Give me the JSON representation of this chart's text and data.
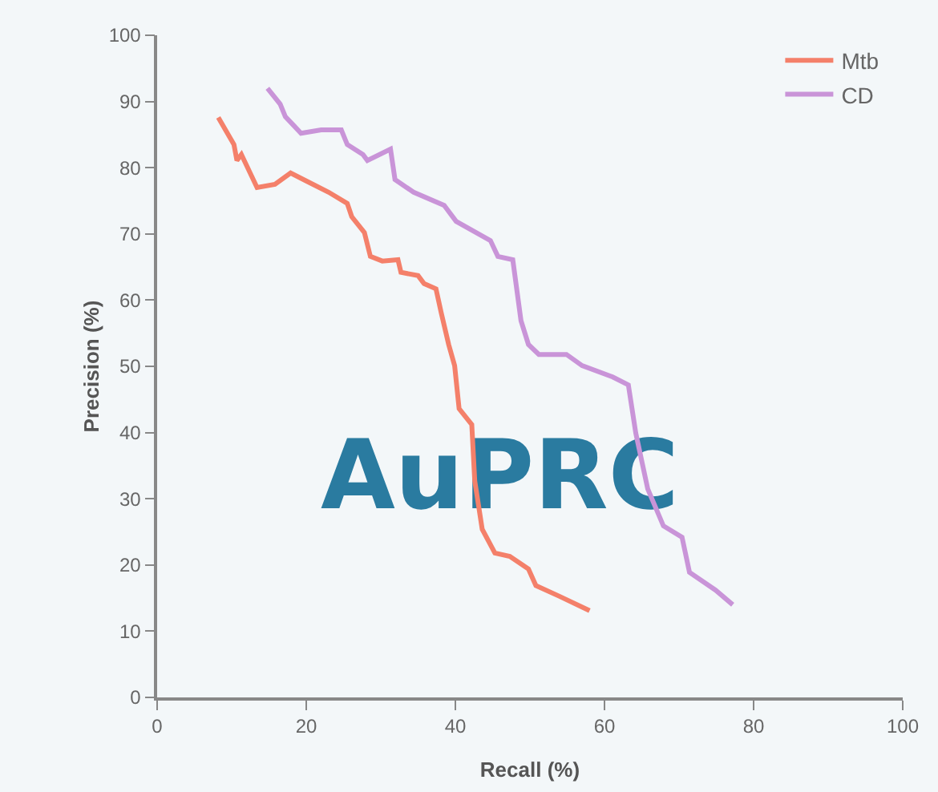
{
  "chart_data": {
    "type": "line",
    "xlabel": "Recall (%)",
    "ylabel": "Precision (%)",
    "annotations": [
      "AuPRC"
    ],
    "xlim": [
      0,
      100
    ],
    "xticks": [
      0,
      20,
      40,
      60,
      80,
      100
    ],
    "ylim": [
      0,
      100
    ],
    "yticks": [
      0,
      10,
      20,
      30,
      40,
      50,
      60,
      70,
      80,
      90,
      100
    ],
    "grid": false,
    "legend": "top right",
    "marker": "none",
    "line_style": "solid",
    "series": [
      {
        "name": "Mtb",
        "color": "#f4806a",
        "x": [
          8.2,
          10.3,
          10.7,
          11.3,
          13.4,
          15.8,
          17.9,
          20,
          23,
          25.5,
          26.1,
          27.8,
          28.6,
          30.2,
          32.3,
          32.7,
          35,
          35.8,
          37.4,
          38.1,
          39.1,
          39.9,
          40.5,
          42.2,
          42.6,
          43.6,
          45.3,
          47.3,
          49.8,
          50.8,
          53.9,
          58
        ],
        "values": [
          87.6,
          83.5,
          81.1,
          82,
          77,
          77.5,
          79.2,
          78,
          76.3,
          74.6,
          72.6,
          70.2,
          66.6,
          65.9,
          66.1,
          64.2,
          63.7,
          62.5,
          61.7,
          58.1,
          53.3,
          50.1,
          43.6,
          41.2,
          32.7,
          25.4,
          21.8,
          21.3,
          19.4,
          16.9,
          15.3,
          13.1
        ]
      },
      {
        "name": "CD",
        "color": "#c994d8",
        "x": [
          14.8,
          16.5,
          17.2,
          18.3,
          19.3,
          22,
          24.7,
          25.5,
          27.6,
          28.2,
          31.3,
          31.9,
          34.4,
          38.5,
          40.1,
          44.7,
          45.7,
          47.7,
          48.8,
          49.8,
          51.2,
          54.9,
          57,
          61.1,
          63.2,
          64.2,
          65.8,
          67.9,
          70.4,
          71.4,
          74.9,
          77.2
        ],
        "values": [
          92,
          89.6,
          87.7,
          86.4,
          85.2,
          85.7,
          85.7,
          83.5,
          82,
          81.1,
          82.8,
          78.2,
          76.3,
          74.3,
          71.9,
          69,
          66.6,
          66.1,
          56.9,
          53.3,
          51.8,
          51.8,
          50.1,
          48.4,
          47.2,
          39.9,
          31.5,
          25.9,
          24.2,
          18.9,
          16.2,
          14
        ]
      }
    ]
  }
}
